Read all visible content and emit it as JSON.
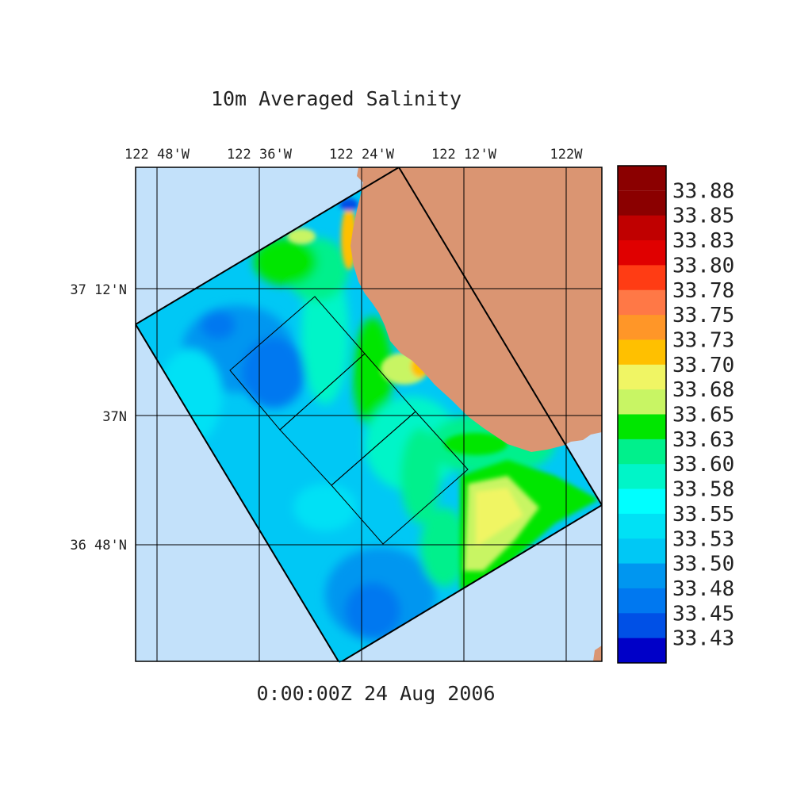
{
  "title": "10m Averaged Salinity",
  "timestamp": "0:00:00Z  24 Aug 2006",
  "lon_labels": [
    "122 48'W",
    "122 36'W",
    "122 24'W",
    "122 12'W",
    "122W"
  ],
  "lat_labels": [
    "37 12'N",
    "37N",
    "36 48'N"
  ],
  "colorbar": {
    "labels": [
      "33.88",
      "33.85",
      "33.83",
      "33.80",
      "33.78",
      "33.75",
      "33.73",
      "33.70",
      "33.68",
      "33.65",
      "33.63",
      "33.60",
      "33.58",
      "33.55",
      "33.53",
      "33.50",
      "33.48",
      "33.45",
      "33.43"
    ],
    "colors": [
      "#8b0000",
      "#c00000",
      "#e00000",
      "#ff3c14",
      "#ff7846",
      "#ff9628",
      "#ffc000",
      "#f0f564",
      "#c8f564",
      "#00e600",
      "#00f08c",
      "#00f5c8",
      "#00ffff",
      "#00e1f5",
      "#00c8f5",
      "#0096f0",
      "#0078f0",
      "#0050e6",
      "#0000c8"
    ]
  },
  "colors": {
    "ocean_outside": "#c3e1fa",
    "land": "#da9572",
    "grid_line": "#000000"
  }
}
